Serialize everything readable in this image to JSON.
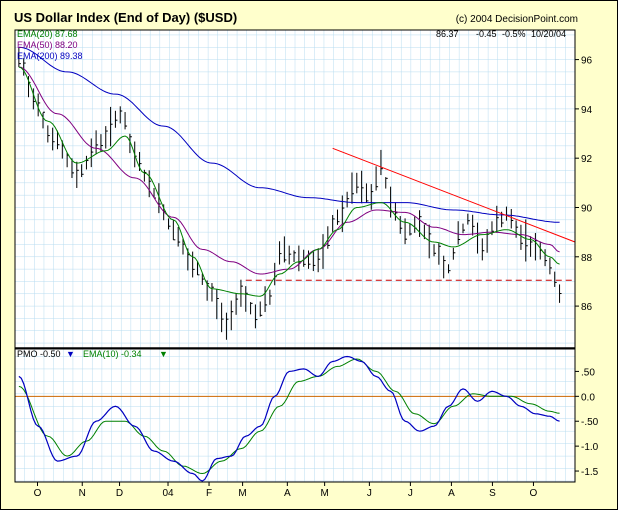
{
  "header": {
    "title": "US Dollar Index (End of Day) ($USD)",
    "copyright": "(c) 2004 DecisionPoint.com",
    "last_quote": {
      "close": "86.37",
      "change": "-0.45",
      "pct_change": "-0.5%",
      "date": "10/20/04"
    }
  },
  "colors": {
    "background": "#ffffcc",
    "plot_background": "#ffffff",
    "grid": "#b8dcf0",
    "price_bars": "#000000",
    "ema20": "#008000",
    "ema50": "#800080",
    "ema200": "#0000c0",
    "trendline": "#ff0000",
    "support_line": "#cc0000",
    "pmo": "#0000c0",
    "pmo_signal": "#008000",
    "zero_line": "#cc6600"
  },
  "legend": {
    "ema20": "EMA(20) 87.68",
    "ema50": "EMA(50) 88.20",
    "ema200": "EMA(200) 89.38",
    "pmo": "PMO -0.50",
    "pmo_arrow": "▼",
    "pmo_signal": "EMA(10) -0.34",
    "pmo_signal_arrow": "▼"
  },
  "chart_data": [
    {
      "type": "line",
      "title": "US Dollar Index (End of Day) ($USD)",
      "y_ticks": [
        86,
        88,
        90,
        92,
        94,
        96
      ],
      "ylim": [
        84.3,
        97.2
      ],
      "grid": true,
      "series_kind": "price bars with EMA(20), EMA(50), EMA(200)",
      "price_anchors": [
        [
          0,
          96.0
        ],
        [
          3,
          94.5
        ],
        [
          7,
          92.8
        ],
        [
          12,
          91.4
        ],
        [
          17,
          92.7
        ],
        [
          21,
          93.8
        ],
        [
          24,
          92.1
        ],
        [
          28,
          90.6
        ],
        [
          32,
          89.1
        ],
        [
          36,
          87.6
        ],
        [
          40,
          86.5
        ],
        [
          43,
          85.2
        ],
        [
          46,
          86.6
        ],
        [
          49,
          85.7
        ],
        [
          52,
          86.3
        ],
        [
          54,
          88.2
        ],
        [
          58,
          88.0
        ],
        [
          62,
          87.8
        ],
        [
          66,
          89.6
        ],
        [
          70,
          90.9
        ],
        [
          73,
          90.4
        ],
        [
          75,
          91.8
        ],
        [
          77,
          90.2
        ],
        [
          80,
          89.0
        ],
        [
          83,
          89.4
        ],
        [
          86,
          88.3
        ],
        [
          89,
          87.5
        ],
        [
          91,
          88.8
        ],
        [
          93,
          89.5
        ],
        [
          96,
          88.4
        ],
        [
          99,
          89.4
        ],
        [
          101,
          89.7
        ],
        [
          104,
          88.8
        ],
        [
          107,
          88.4
        ],
        [
          110,
          87.7
        ],
        [
          112,
          86.4
        ]
      ],
      "ema20_anchors": [
        [
          0,
          95.7
        ],
        [
          6,
          93.5
        ],
        [
          12,
          91.8
        ],
        [
          18,
          92.3
        ],
        [
          22,
          92.9
        ],
        [
          26,
          91.4
        ],
        [
          32,
          89.5
        ],
        [
          36,
          88.0
        ],
        [
          40,
          86.7
        ],
        [
          46,
          86.5
        ],
        [
          50,
          86.4
        ],
        [
          54,
          87.3
        ],
        [
          58,
          87.8
        ],
        [
          62,
          88.3
        ],
        [
          66,
          89.1
        ],
        [
          70,
          90.0
        ],
        [
          75,
          90.2
        ],
        [
          80,
          89.4
        ],
        [
          86,
          88.6
        ],
        [
          90,
          88.4
        ],
        [
          96,
          88.9
        ],
        [
          101,
          89.1
        ],
        [
          106,
          88.7
        ],
        [
          110,
          88.0
        ],
        [
          112,
          87.7
        ]
      ],
      "ema50_anchors": [
        [
          0,
          95.7
        ],
        [
          8,
          93.8
        ],
        [
          16,
          92.4
        ],
        [
          24,
          91.2
        ],
        [
          32,
          89.6
        ],
        [
          38,
          88.3
        ],
        [
          44,
          87.8
        ],
        [
          50,
          87.3
        ],
        [
          56,
          87.5
        ],
        [
          62,
          88.3
        ],
        [
          68,
          89.4
        ],
        [
          74,
          89.9
        ],
        [
          80,
          89.8
        ],
        [
          86,
          89.2
        ],
        [
          92,
          88.9
        ],
        [
          98,
          89.0
        ],
        [
          104,
          88.9
        ],
        [
          110,
          88.5
        ],
        [
          112,
          88.2
        ]
      ],
      "ema200_anchors": [
        [
          0,
          96.5
        ],
        [
          10,
          95.5
        ],
        [
          20,
          94.6
        ],
        [
          30,
          93.3
        ],
        [
          40,
          91.8
        ],
        [
          50,
          90.8
        ],
        [
          60,
          90.4
        ],
        [
          70,
          90.2
        ],
        [
          80,
          90.2
        ],
        [
          90,
          89.9
        ],
        [
          100,
          89.7
        ],
        [
          112,
          89.4
        ]
      ],
      "trendline": [
        [
          65,
          92.4
        ],
        [
          118,
          88.6
        ]
      ],
      "support_level": 87.05
    },
    {
      "type": "line",
      "title": "PMO",
      "y_ticks": [
        -1.5,
        -1.0,
        -0.5,
        0.0,
        0.5
      ],
      "y_tick_labels": [
        "-1.5",
        "-1.0",
        "-.50",
        "0.0",
        ".50"
      ],
      "ylim": [
        -1.72,
        0.95
      ],
      "grid": true,
      "zero_line": 0.0,
      "pmo_anchors": [
        [
          0,
          0.4
        ],
        [
          4,
          -0.6
        ],
        [
          8,
          -1.3
        ],
        [
          12,
          -1.2
        ],
        [
          16,
          -0.5
        ],
        [
          20,
          -0.2
        ],
        [
          24,
          -0.6
        ],
        [
          28,
          -1.1
        ],
        [
          32,
          -1.3
        ],
        [
          36,
          -1.55
        ],
        [
          38,
          -1.7
        ],
        [
          41,
          -1.25
        ],
        [
          44,
          -1.2
        ],
        [
          47,
          -0.8
        ],
        [
          50,
          -0.6
        ],
        [
          53,
          0.0
        ],
        [
          56,
          0.5
        ],
        [
          59,
          0.55
        ],
        [
          62,
          0.4
        ],
        [
          65,
          0.7
        ],
        [
          68,
          0.8
        ],
        [
          71,
          0.7
        ],
        [
          74,
          0.4
        ],
        [
          77,
          0.1
        ],
        [
          80,
          -0.5
        ],
        [
          83,
          -0.7
        ],
        [
          86,
          -0.6
        ],
        [
          89,
          -0.2
        ],
        [
          92,
          0.15
        ],
        [
          95,
          -0.1
        ],
        [
          98,
          0.1
        ],
        [
          101,
          0.0
        ],
        [
          104,
          -0.2
        ],
        [
          107,
          -0.35
        ],
        [
          110,
          -0.4
        ],
        [
          112,
          -0.5
        ]
      ],
      "signal_anchors": [
        [
          0,
          0.2
        ],
        [
          6,
          -0.8
        ],
        [
          10,
          -1.2
        ],
        [
          14,
          -0.9
        ],
        [
          18,
          -0.5
        ],
        [
          22,
          -0.5
        ],
        [
          26,
          -0.8
        ],
        [
          30,
          -1.1
        ],
        [
          34,
          -1.4
        ],
        [
          38,
          -1.55
        ],
        [
          42,
          -1.3
        ],
        [
          46,
          -1.05
        ],
        [
          50,
          -0.7
        ],
        [
          54,
          -0.2
        ],
        [
          58,
          0.3
        ],
        [
          62,
          0.4
        ],
        [
          66,
          0.6
        ],
        [
          70,
          0.75
        ],
        [
          74,
          0.5
        ],
        [
          78,
          0.1
        ],
        [
          82,
          -0.35
        ],
        [
          86,
          -0.55
        ],
        [
          90,
          -0.2
        ],
        [
          94,
          0.05
        ],
        [
          98,
          0.0
        ],
        [
          102,
          0.0
        ],
        [
          106,
          -0.15
        ],
        [
          110,
          -0.3
        ],
        [
          112,
          -0.34
        ]
      ]
    }
  ],
  "x_axis": {
    "months": [
      {
        "label": "O",
        "day": 5
      },
      {
        "label": "N",
        "day": 17
      },
      {
        "label": "D",
        "day": 27
      },
      {
        "label": "04",
        "day": 40
      },
      {
        "label": "F",
        "day": 51
      },
      {
        "label": "M",
        "day": 60
      },
      {
        "label": "A",
        "day": 72
      },
      {
        "label": "M",
        "day": 82
      },
      {
        "label": "J",
        "day": 94
      },
      {
        "label": "J",
        "day": 105
      },
      {
        "label": "A",
        "day": 116
      },
      {
        "label": "S",
        "day": 127
      },
      {
        "label": "O",
        "day": 138
      }
    ]
  }
}
